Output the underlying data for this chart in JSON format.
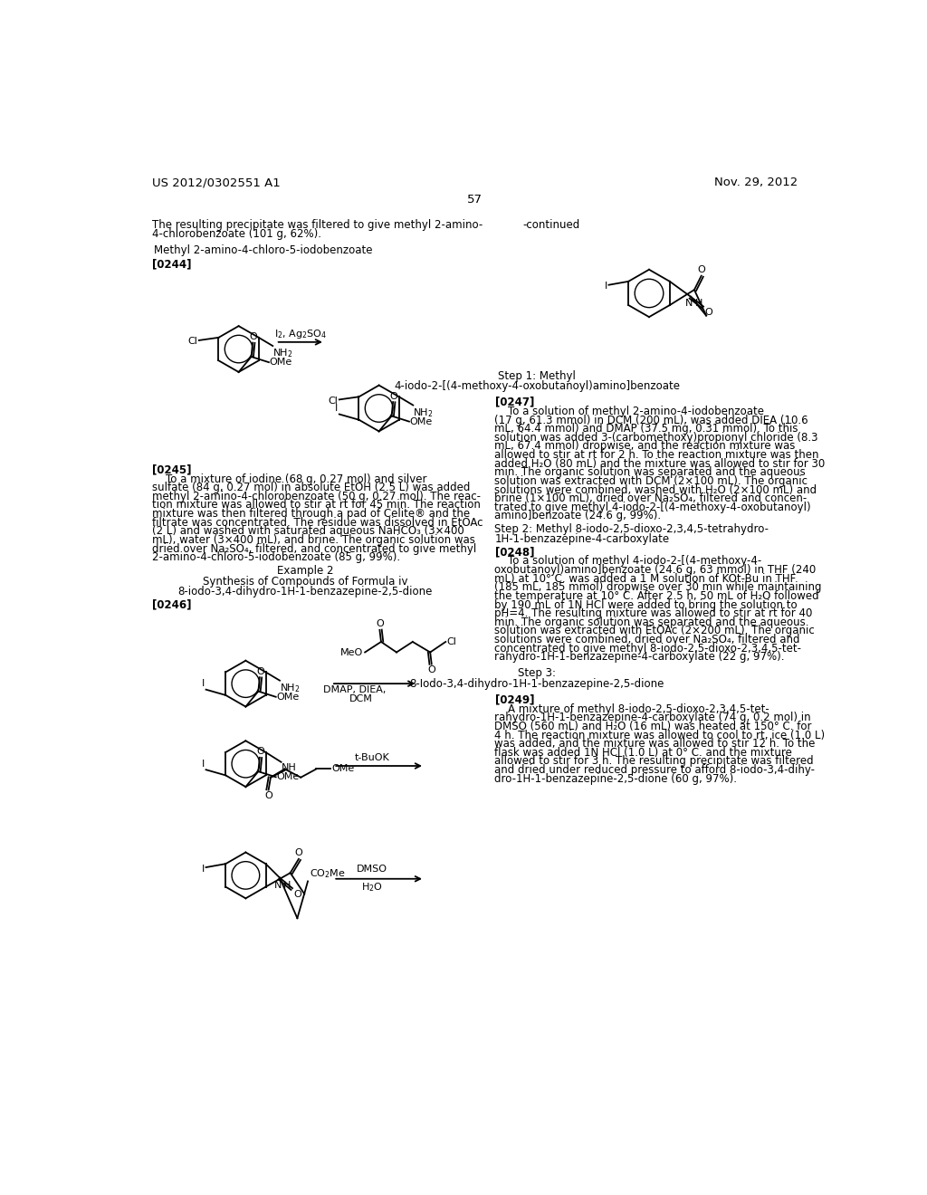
{
  "patent_left": "US 2012/0302551 A1",
  "patent_right": "Nov. 29, 2012",
  "page_num": "57",
  "background_color": "#ffffff"
}
